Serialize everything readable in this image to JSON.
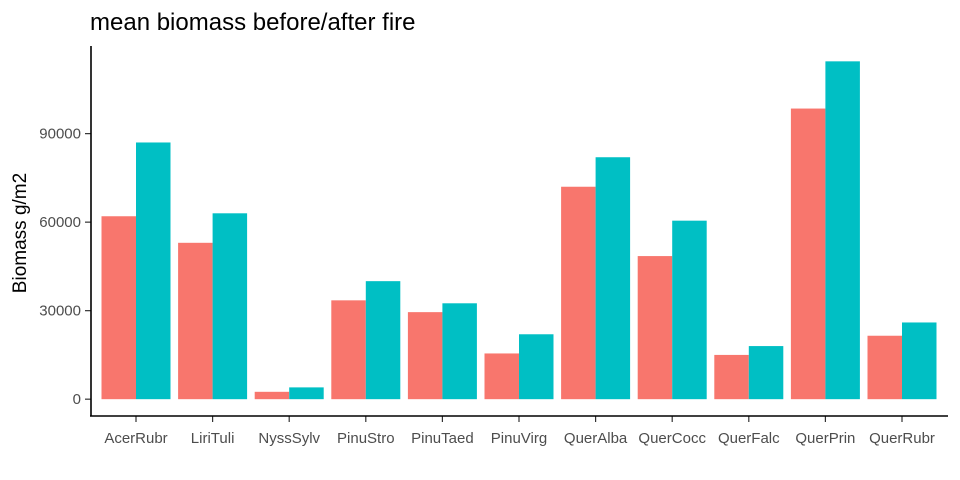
{
  "chart_data": {
    "type": "bar",
    "title": "mean biomass before/after fire",
    "xlabel": "",
    "ylabel": "Biomass g/m2",
    "categories": [
      "AcerRubr",
      "LiriTuli",
      "NyssSylv",
      "PinuStro",
      "PinuTaed",
      "PinuVirg",
      "QuerAlba",
      "QuerCocc",
      "QuerFalc",
      "QuerPrin",
      "QuerRubr"
    ],
    "series": [
      {
        "values": [
          62000,
          53000,
          2500,
          33500,
          29500,
          15500,
          72000,
          48500,
          15000,
          98500,
          21500
        ],
        "color": "#F8766D"
      },
      {
        "values": [
          87000,
          63000,
          4000,
          40000,
          32500,
          22000,
          82000,
          60500,
          18000,
          114500,
          26000
        ],
        "color": "#00BFC4"
      }
    ],
    "yticks": [
      0,
      30000,
      60000,
      90000
    ],
    "ytick_labels": [
      "0",
      "30000",
      "60000",
      "90000"
    ],
    "ylim": [
      -5700,
      119700
    ],
    "grid": false,
    "legend": "none"
  }
}
